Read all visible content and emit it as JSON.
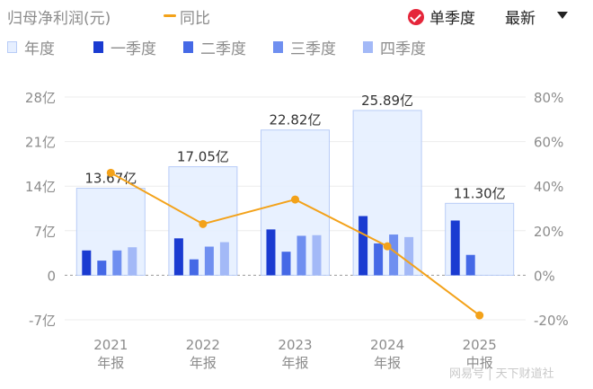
{
  "header": {
    "title": "归母净利润(元)",
    "yoy_label": "同比",
    "quarter_toggle": "单季度",
    "sort_label": "最新"
  },
  "legend": [
    {
      "label": "年度",
      "color": "#e6efff",
      "border": "#b8ccf7"
    },
    {
      "label": "一季度",
      "color": "#1a3bd1"
    },
    {
      "label": "二季度",
      "color": "#4569e6"
    },
    {
      "label": "三季度",
      "color": "#6f8ff0"
    },
    {
      "label": "四季度",
      "color": "#a3b9f7"
    }
  ],
  "watermark": "网易号 | 天下财道社",
  "chart_data": {
    "type": "bar",
    "categories": [
      [
        "2021",
        "年报"
      ],
      [
        "2022",
        "年报"
      ],
      [
        "2023",
        "年报"
      ],
      [
        "2024",
        "年报"
      ],
      [
        "2025",
        "中报"
      ]
    ],
    "annual": {
      "name": "年度",
      "values": [
        13.67,
        17.05,
        22.82,
        25.89,
        11.3
      ],
      "labels": [
        "13.67亿",
        "17.05亿",
        "22.82亿",
        "25.89亿",
        "11.30亿"
      ]
    },
    "quarterly": [
      {
        "name": "一季度",
        "values": [
          3.9,
          5.8,
          7.2,
          9.3,
          8.6
        ]
      },
      {
        "name": "二季度",
        "values": [
          2.3,
          2.5,
          3.7,
          5.0,
          3.2
        ]
      },
      {
        "name": "三季度",
        "values": [
          3.9,
          4.5,
          6.2,
          6.4,
          null
        ]
      },
      {
        "name": "四季度",
        "values": [
          4.4,
          5.2,
          6.3,
          6.0,
          null
        ]
      }
    ],
    "yoy": {
      "name": "同比",
      "values": [
        46,
        23,
        34,
        13,
        -18
      ]
    },
    "y_left": {
      "min": -7,
      "max": 28,
      "ticks": [
        28,
        21,
        14,
        7,
        0,
        -7
      ],
      "tick_labels": [
        "28亿",
        "21亿",
        "14亿",
        "7亿",
        "0",
        "-7亿"
      ]
    },
    "y_right": {
      "min": -20,
      "max": 80,
      "ticks": [
        80,
        60,
        40,
        20,
        0,
        -20
      ],
      "tick_labels": [
        "80%",
        "60%",
        "40%",
        "20%",
        "0%",
        "-20%"
      ]
    },
    "line_color": "#f3a21a",
    "grid": true
  }
}
